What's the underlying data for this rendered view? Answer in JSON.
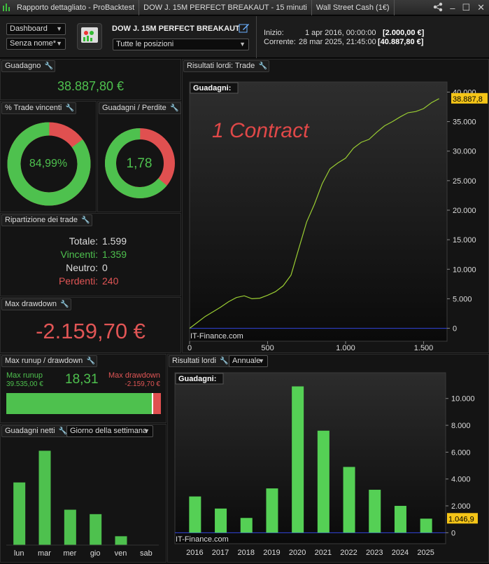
{
  "titlebar": {
    "app": "Rapporto dettagliato - ProBacktest",
    "strategy": "DOW J. 15M PERFECT BREAKAUT - 15 minuti",
    "instrument": "Wall Street Cash (1€)"
  },
  "toolbar": {
    "view_select": "Dashboard",
    "name_select": "Senza nome*",
    "strategy_name": "DOW J. 15M PERFECT BREAKAUT",
    "positions_select": "Tutte le posizioni",
    "start_label": "Inizio:",
    "start_date": "1 apr 2016, 00:00:00",
    "start_value": "[2.000,00 €]",
    "current_label": "Corrente:",
    "current_date": "28 mar 2025, 21:45:00",
    "current_value": "[40.887,80 €]"
  },
  "gain": {
    "title": "Guadagno",
    "value": "38.887,80 €"
  },
  "win_rate": {
    "title": "% Trade vincenti",
    "value": "84,99%",
    "fraction": 0.8499
  },
  "gain_loss": {
    "title": "Guadagni / Perdite",
    "value": "1,78",
    "fraction": 0.64
  },
  "breakdown": {
    "title": "Ripartizione dei trade",
    "rows": [
      {
        "label": "Totale:",
        "value": "1.599"
      },
      {
        "label": "Vincenti:",
        "value": "1.359"
      },
      {
        "label": "Neutro:",
        "value": "0"
      },
      {
        "label": "Perdenti:",
        "value": "240"
      }
    ]
  },
  "max_dd": {
    "title": "Max drawdown",
    "value": "-2.159,70 €"
  },
  "runup": {
    "title": "Max runup / drawdown",
    "runup_label": "Max runup",
    "runup_value": "39.535,00 €",
    "ratio": "18,31",
    "dd_label": "Max drawdown",
    "dd_value": "-2.159,70 €",
    "runup_fraction": 0.948
  },
  "net_gains": {
    "title": "Guadagni netti",
    "period_select": "Giorno della settimana",
    "chart_data": {
      "type": "bar",
      "categories": [
        "lun",
        "mar",
        "mer",
        "gio",
        "ven",
        "sab"
      ],
      "values": [
        8500,
        12800,
        4800,
        4200,
        1200,
        0
      ]
    }
  },
  "equity": {
    "title": "Risultati lordi: Trade",
    "legend": "Guadagni:",
    "watermark_a": "1 Contract",
    "watermark_b": "IT-Finance.com",
    "last_label": "38.887,8",
    "chart_data": {
      "type": "line",
      "xlabel": "",
      "ylabel": "",
      "xticks": [
        "0",
        "500",
        "1.000",
        "1.500"
      ],
      "yticks": [
        "0",
        "5.000",
        "10.000",
        "15.000",
        "20.000",
        "25.000",
        "30.000",
        "35.000",
        "40.000"
      ],
      "xlim": [
        0,
        1650
      ],
      "ylim": [
        -1000,
        41000
      ],
      "x": [
        0,
        50,
        100,
        150,
        200,
        250,
        300,
        350,
        400,
        450,
        500,
        550,
        600,
        650,
        700,
        750,
        800,
        850,
        900,
        950,
        1000,
        1050,
        1100,
        1150,
        1200,
        1250,
        1300,
        1350,
        1400,
        1450,
        1500,
        1550,
        1599
      ],
      "y": [
        0,
        1000,
        2000,
        2800,
        3600,
        4500,
        5200,
        5500,
        5000,
        5100,
        5600,
        6200,
        7200,
        9000,
        13500,
        18000,
        21000,
        24500,
        27000,
        28000,
        28800,
        30500,
        31500,
        32000,
        33200,
        34300,
        35000,
        35800,
        36500,
        36700,
        37200,
        38200,
        38887.8
      ]
    }
  },
  "annual": {
    "title": "Risultati lordi",
    "period_select": "Annuale",
    "legend": "Guadagni:",
    "watermark": "IT-Finance.com",
    "last_label": "1.046,9",
    "chart_data": {
      "type": "bar",
      "categories": [
        "2016",
        "2017",
        "2018",
        "2019",
        "2020",
        "2021",
        "2022",
        "2023",
        "2024",
        "2025"
      ],
      "values": [
        2700,
        1800,
        1100,
        3300,
        10900,
        7600,
        4900,
        3200,
        2000,
        1046.9
      ],
      "yticks": [
        "0",
        "2.000",
        "4.000",
        "6.000",
        "8.000",
        "10.000"
      ],
      "ylim": [
        -400,
        11500
      ]
    }
  }
}
